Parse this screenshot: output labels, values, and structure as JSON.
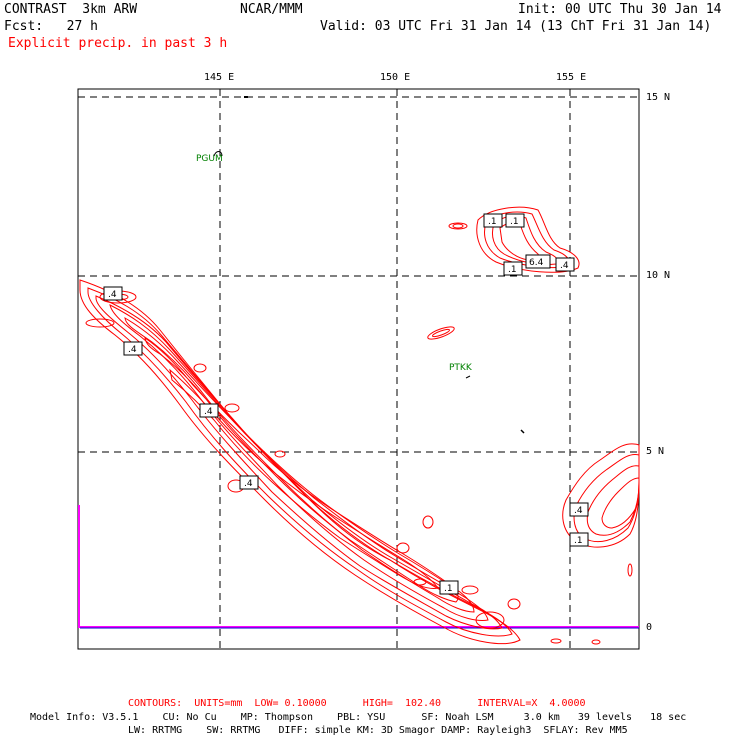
{
  "header": {
    "model": "CONTRAST  3km ARW",
    "center": "NCAR/MMM",
    "init": "Init: 00 UTC Thu 30 Jan 14",
    "fcst": "Fcst:   27 h",
    "valid": "Valid: 03 UTC Fri 31 Jan 14 (13 ChT Fri 31 Jan 14)",
    "field": "Explicit precip. in past 3 h"
  },
  "axes": {
    "lon_ticks": [
      "145 E",
      "150 E",
      "155 E"
    ],
    "lat_ticks": [
      "15 N",
      "10 N",
      "5 N",
      "0"
    ]
  },
  "stations": [
    "PGUM",
    "PTKK"
  ],
  "contour_labels": [
    ".4",
    ".4",
    ".4",
    ".4",
    ".1",
    ".1",
    ".1",
    ".1",
    "6.4",
    ".4",
    ".4",
    ".1"
  ],
  "footer": {
    "contours": "CONTOURS:  UNITS=mm  LOW= 0.10000      HIGH=  102.40      INTERVAL=X  4.0000",
    "info1": "Model Info: V3.5.1    CU: No Cu    MP: Thompson    PBL: YSU      SF: Noah LSM     3.0 km   39 levels   18 sec",
    "info2": "LW: RRTMG    SW: RRTMG   DIFF: simple KM: 3D Smagor DAMP: Rayleigh3  SFLAY: Rev MM5"
  },
  "colors": {
    "precip": "#ff0000",
    "station": "#008000",
    "boundary": "#ff00ff"
  }
}
